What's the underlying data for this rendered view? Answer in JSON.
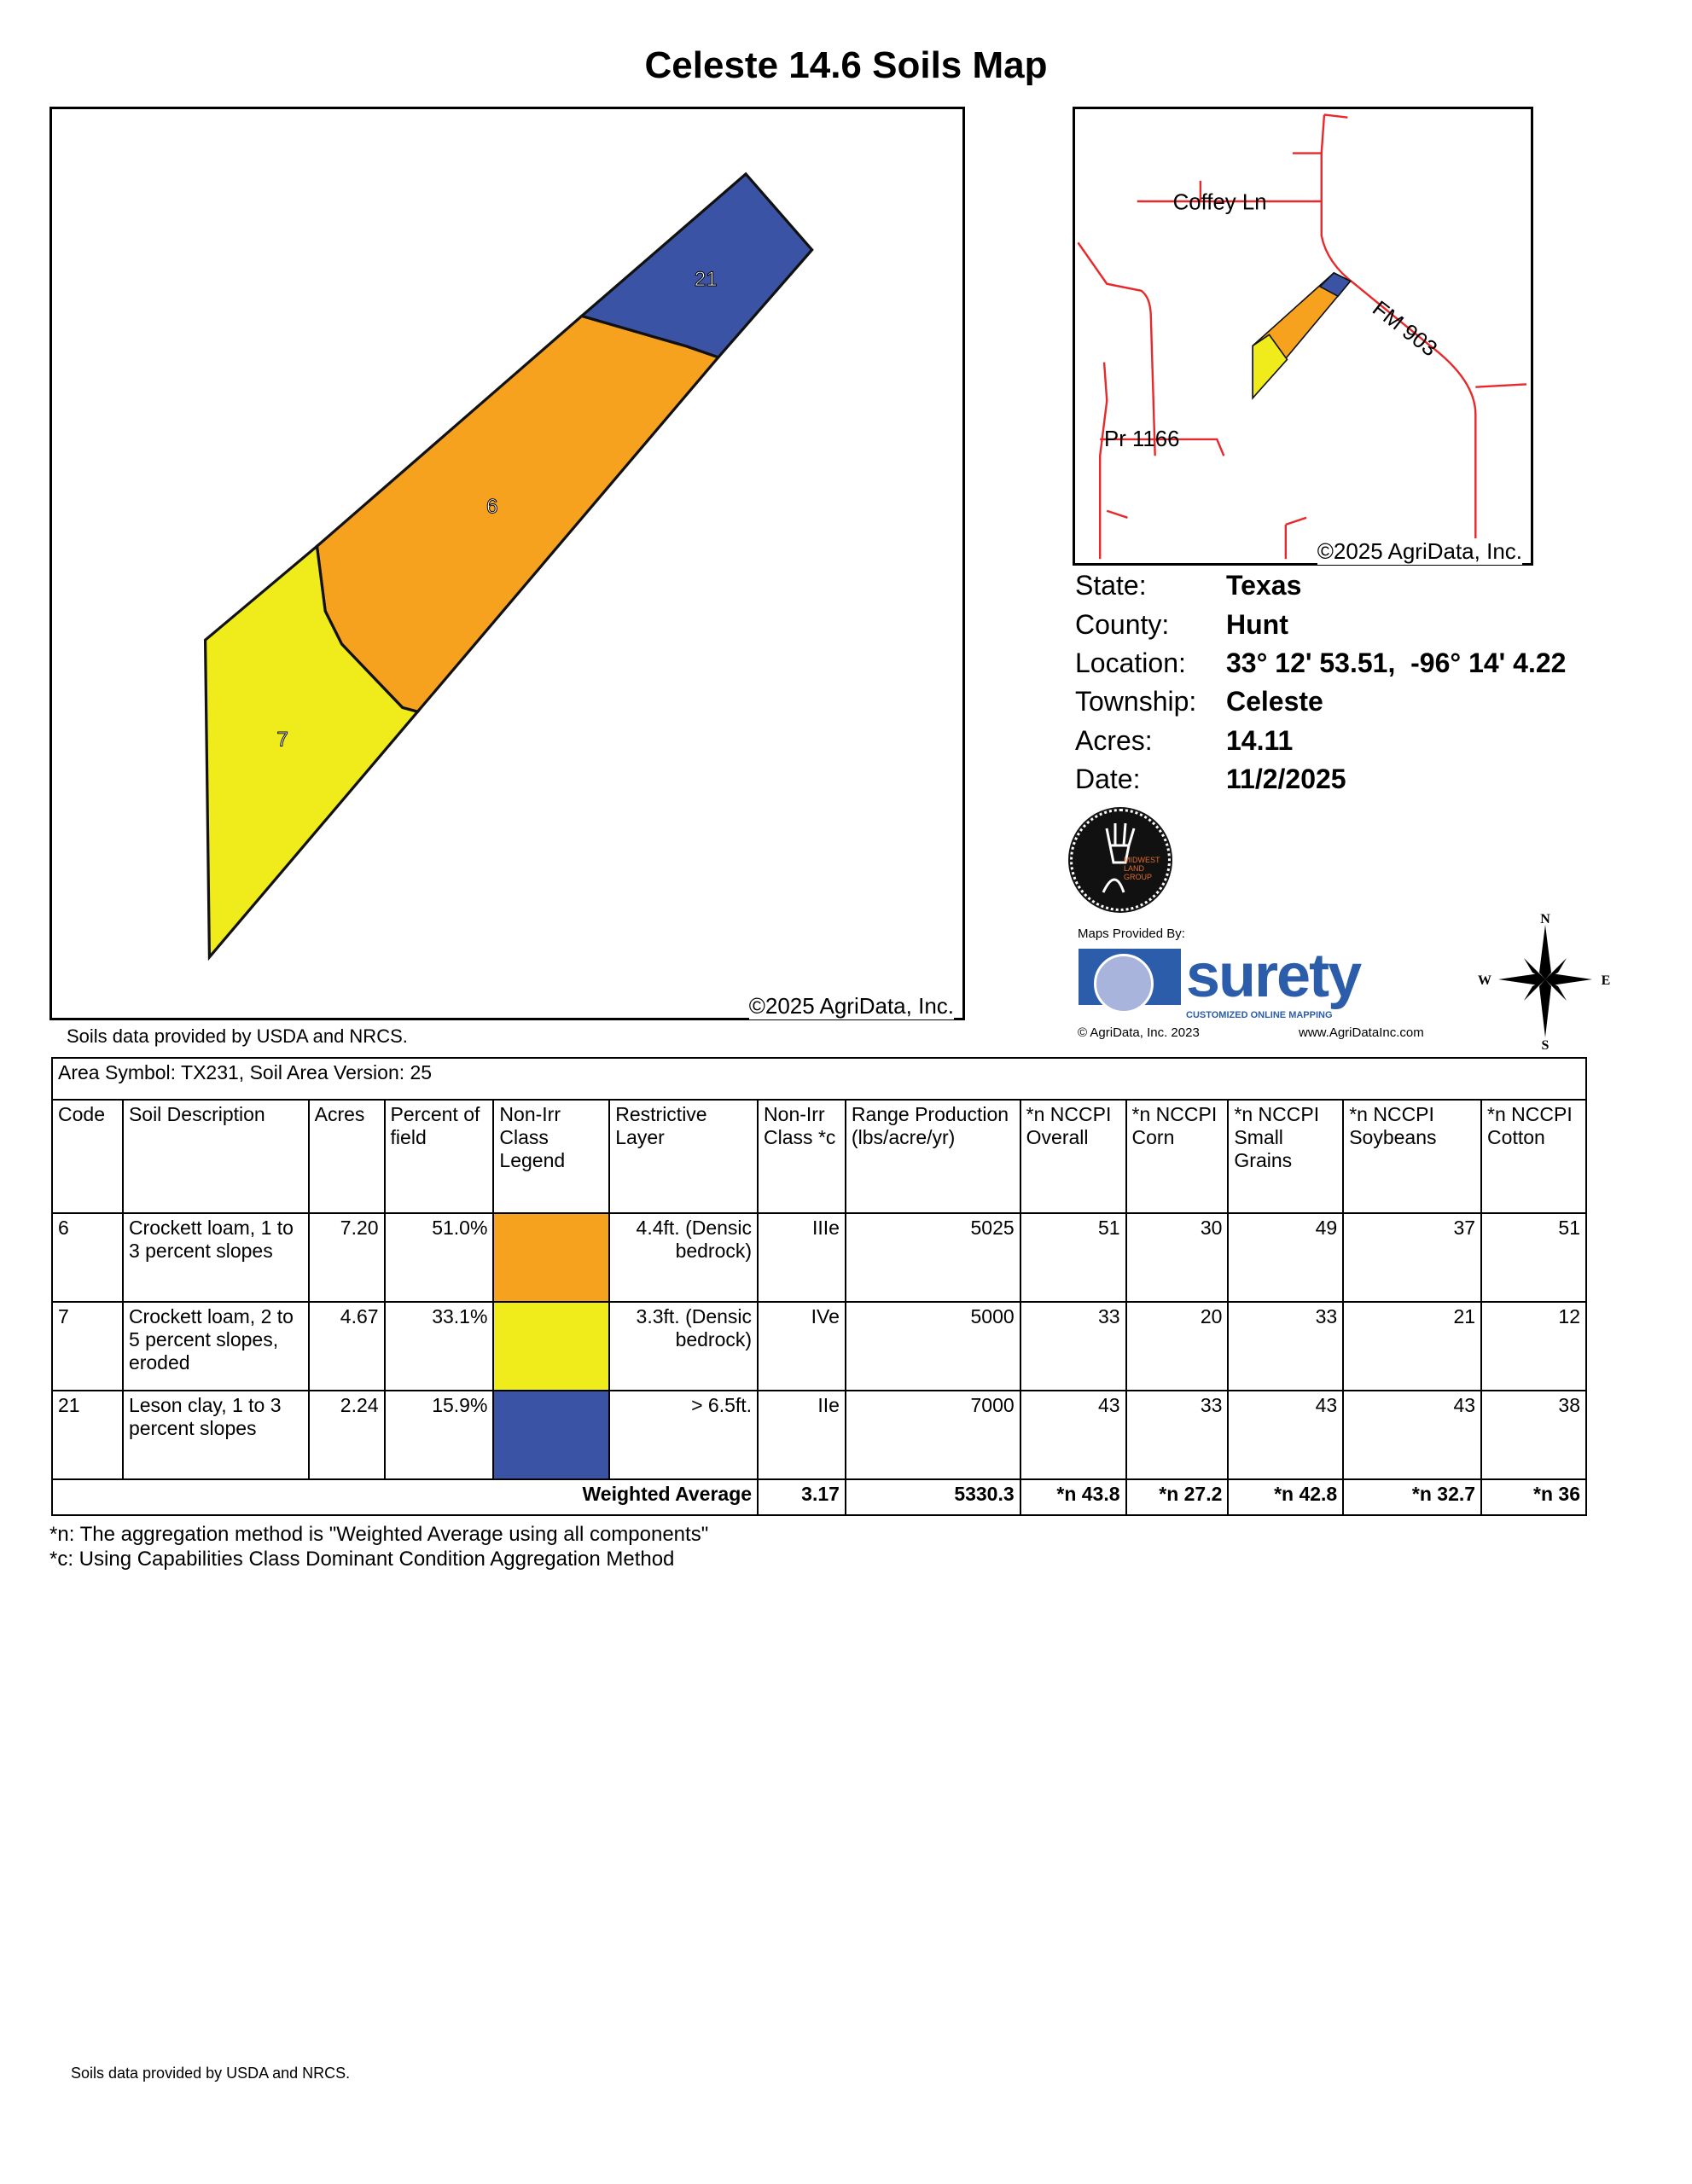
{
  "title": "Celeste 14.6 Soils Map",
  "main_map": {
    "copyright": "©2025 AgriData, Inc.",
    "units": [
      {
        "code": "6",
        "color": "#F7A21E"
      },
      {
        "code": "7",
        "color": "#F0EB1A"
      },
      {
        "code": "21",
        "color": "#3B53A4"
      }
    ]
  },
  "inset_map": {
    "copyright": "©2025 AgriData, Inc.",
    "roads": [
      "Coffey Ln",
      "FM 903",
      "Pr 1166"
    ],
    "road_color": "#E8292B"
  },
  "info": [
    {
      "label": "State:",
      "value": "Texas"
    },
    {
      "label": "County:",
      "value": "Hunt"
    },
    {
      "label": "Location:",
      "value": "33° 12' 53.51,  -96° 14' 4.22"
    },
    {
      "label": "Township:",
      "value": "Celeste"
    },
    {
      "label": "Acres:",
      "value": "14.11"
    },
    {
      "label": "Date:",
      "value": "11/2/2025"
    }
  ],
  "logos": {
    "midwest": "MIDWEST LAND GROUP",
    "maps_provided_by": "Maps Provided By:",
    "surety": "surety",
    "surety_tagline": "CUSTOMIZED ONLINE MAPPING",
    "agridata_copyright": "© AgriData, Inc. 2023",
    "agridata_url": "www.AgriDataInc.com"
  },
  "compass": {
    "n": "N",
    "s": "S",
    "e": "E",
    "w": "W"
  },
  "soils_note": "Soils data provided by USDA and NRCS.",
  "table": {
    "area_row": "Area Symbol: TX231, Soil Area Version: 25",
    "headers": [
      "Code",
      "Soil Description",
      "Acres",
      "Percent of field",
      "Non-Irr Class Legend",
      "Restrictive Layer",
      "Non-Irr Class *c",
      "Range Production (lbs/acre/yr)",
      "*n NCCPI Overall",
      "*n NCCPI Corn",
      "*n NCCPI Small Grains",
      "*n NCCPI Soybeans",
      "*n NCCPI Cotton"
    ],
    "rows": [
      {
        "code": "6",
        "desc": "Crockett loam, 1 to 3 percent slopes",
        "acres": "7.20",
        "pct": "51.0%",
        "color": "#F7A21E",
        "restrictive": "4.4ft. (Densic bedrock)",
        "class": "IIIe",
        "range": "5025",
        "overall": "51",
        "corn": "30",
        "small_grains": "49",
        "soybeans": "37",
        "cotton": "51"
      },
      {
        "code": "7",
        "desc": "Crockett loam, 2 to 5 percent slopes, eroded",
        "acres": "4.67",
        "pct": "33.1%",
        "color": "#F0EB1A",
        "restrictive": "3.3ft. (Densic bedrock)",
        "class": "IVe",
        "range": "5000",
        "overall": "33",
        "corn": "20",
        "small_grains": "33",
        "soybeans": "21",
        "cotton": "12"
      },
      {
        "code": "21",
        "desc": "Leson clay, 1 to 3 percent slopes",
        "acres": "2.24",
        "pct": "15.9%",
        "color": "#3B53A4",
        "restrictive": "> 6.5ft.",
        "class": "IIe",
        "range": "7000",
        "overall": "43",
        "corn": "33",
        "small_grains": "43",
        "soybeans": "43",
        "cotton": "38"
      }
    ],
    "weighted": {
      "label": "Weighted Average",
      "class": "3.17",
      "range": "5330.3",
      "overall": "*n 43.8",
      "corn": "*n 27.2",
      "small_grains": "*n 42.8",
      "soybeans": "*n 32.7",
      "cotton": "*n 36"
    }
  },
  "footnotes": [
    "*n: The aggregation method is \"Weighted Average using all components\"",
    "*c: Using Capabilities Class Dominant Condition Aggregation Method"
  ],
  "bottom_note": "Soils data provided by USDA and NRCS."
}
